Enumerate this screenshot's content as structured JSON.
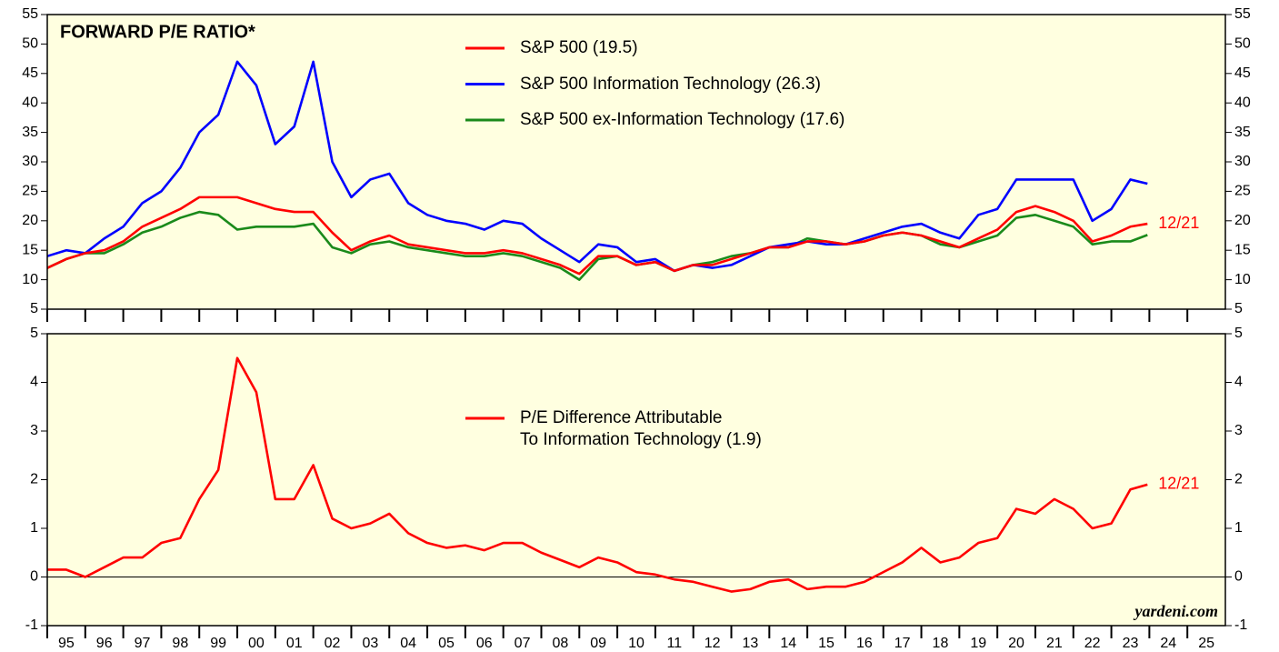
{
  "chart_data": [
    {
      "type": "line",
      "title": "FORWARD P/E RATIO*",
      "annotation": "12/21",
      "x": [
        1995.0,
        1995.5,
        1996.0,
        1996.5,
        1997.0,
        1997.5,
        1998.0,
        1998.5,
        1999.0,
        1999.5,
        2000.0,
        2000.5,
        2001.0,
        2001.5,
        2002.0,
        2002.5,
        2003.0,
        2003.5,
        2004.0,
        2004.5,
        2005.0,
        2005.5,
        2006.0,
        2006.5,
        2007.0,
        2007.5,
        2008.0,
        2008.5,
        2009.0,
        2009.5,
        2010.0,
        2010.5,
        2011.0,
        2011.5,
        2012.0,
        2012.5,
        2013.0,
        2013.5,
        2014.0,
        2014.5,
        2015.0,
        2015.5,
        2016.0,
        2016.5,
        2017.0,
        2017.5,
        2018.0,
        2018.5,
        2019.0,
        2019.5,
        2020.0,
        2020.5,
        2021.0,
        2021.5,
        2022.0,
        2022.5,
        2023.0,
        2023.5,
        2023.95
      ],
      "series": [
        {
          "name": "S&P 500 (19.5)",
          "color": "#ff0000",
          "values": [
            12,
            13.5,
            14.5,
            15,
            16.5,
            19,
            20.5,
            22,
            24,
            24,
            24,
            23,
            22,
            21.5,
            21.5,
            18,
            15,
            16.5,
            17.5,
            16,
            15.5,
            15,
            14.5,
            14.5,
            15,
            14.5,
            13.5,
            12.5,
            11,
            14,
            14,
            12.5,
            13,
            11.5,
            12.5,
            12.5,
            13.5,
            14.5,
            15.5,
            15.5,
            16.5,
            16.5,
            16,
            16.5,
            17.5,
            18,
            17.5,
            16.5,
            15.5,
            17,
            18.5,
            21.5,
            22.5,
            21.5,
            20,
            16.5,
            17.5,
            19,
            19.5
          ]
        },
        {
          "name": "S&P 500 Information Technology (26.3)",
          "color": "#0000ff",
          "values": [
            14,
            15,
            14.5,
            17,
            19,
            23,
            25,
            29,
            35,
            38,
            47,
            43,
            33,
            36,
            47,
            30,
            24,
            27,
            28,
            23,
            21,
            20,
            19.5,
            18.5,
            20,
            19.5,
            17,
            15,
            13,
            16,
            15.5,
            13,
            13.5,
            11.5,
            12.5,
            12,
            12.5,
            14,
            15.5,
            16,
            16.5,
            16,
            16,
            17,
            18,
            19,
            19.5,
            18,
            17,
            21,
            22,
            27,
            27,
            27,
            27,
            20,
            22,
            27,
            26.3
          ]
        },
        {
          "name": "S&P 500 ex-Information Technology (17.6)",
          "color": "#1a8a1a",
          "values": [
            12,
            13.5,
            14.5,
            14.5,
            16,
            18,
            19,
            20.5,
            21.5,
            21,
            18.5,
            19,
            19,
            19,
            19.5,
            15.5,
            14.5,
            16,
            16.5,
            15.5,
            15,
            14.5,
            14,
            14,
            14.5,
            14,
            13,
            12,
            10,
            13.5,
            14,
            12.5,
            13,
            11.5,
            12.5,
            13,
            14,
            14.5,
            15.5,
            15.5,
            17,
            16.5,
            16,
            16.5,
            17.5,
            18,
            17.5,
            16,
            15.5,
            16.5,
            17.5,
            20.5,
            21,
            20,
            19,
            16,
            16.5,
            16.5,
            17.6
          ]
        }
      ],
      "xlim": [
        1995,
        2026
      ],
      "xticks": [
        1995,
        1996,
        1997,
        1998,
        1999,
        2000,
        2001,
        2002,
        2003,
        2004,
        2005,
        2006,
        2007,
        2008,
        2009,
        2010,
        2011,
        2012,
        2013,
        2014,
        2015,
        2016,
        2017,
        2018,
        2019,
        2020,
        2021,
        2022,
        2023,
        2024,
        2025
      ],
      "ylim": [
        5,
        55
      ],
      "yticks": [
        5,
        10,
        15,
        20,
        25,
        30,
        35,
        40,
        45,
        50,
        55
      ]
    },
    {
      "type": "line",
      "annotation": "12/21",
      "source": "yardeni.com",
      "reference_line": 0,
      "x": [
        1995.0,
        1995.5,
        1996.0,
        1996.5,
        1997.0,
        1997.5,
        1998.0,
        1998.5,
        1999.0,
        1999.5,
        2000.0,
        2000.5,
        2001.0,
        2001.5,
        2002.0,
        2002.5,
        2003.0,
        2003.5,
        2004.0,
        2004.5,
        2005.0,
        2005.5,
        2006.0,
        2006.5,
        2007.0,
        2007.5,
        2008.0,
        2008.5,
        2009.0,
        2009.5,
        2010.0,
        2010.5,
        2011.0,
        2011.5,
        2012.0,
        2012.5,
        2013.0,
        2013.5,
        2014.0,
        2014.5,
        2015.0,
        2015.5,
        2016.0,
        2016.5,
        2017.0,
        2017.5,
        2018.0,
        2018.5,
        2019.0,
        2019.5,
        2020.0,
        2020.5,
        2021.0,
        2021.5,
        2022.0,
        2022.5,
        2023.0,
        2023.5,
        2023.95
      ],
      "series": [
        {
          "name": "P/E Difference Attributable\nTo Information Technology (1.9)",
          "color": "#ff0000",
          "values": [
            0.15,
            0.15,
            0,
            0.2,
            0.4,
            0.4,
            0.7,
            0.8,
            1.6,
            2.2,
            4.5,
            3.8,
            1.6,
            1.6,
            2.3,
            1.2,
            1,
            1.1,
            1.3,
            0.9,
            0.7,
            0.6,
            0.65,
            0.55,
            0.7,
            0.7,
            0.5,
            0.35,
            0.2,
            0.4,
            0.3,
            0.1,
            0.05,
            -0.05,
            -0.1,
            -0.2,
            -0.3,
            -0.25,
            -0.1,
            -0.05,
            -0.25,
            -0.2,
            -0.2,
            -0.1,
            0.1,
            0.3,
            0.6,
            0.3,
            0.4,
            0.7,
            0.8,
            1.4,
            1.3,
            1.6,
            1.4,
            1,
            1.1,
            1.8,
            1.9
          ]
        }
      ],
      "xlim": [
        1995,
        2026
      ],
      "xticks": [
        {
          "value": 1995,
          "label": "95"
        },
        {
          "value": 1996,
          "label": "96"
        },
        {
          "value": 1997,
          "label": "97"
        },
        {
          "value": 1998,
          "label": "98"
        },
        {
          "value": 1999,
          "label": "99"
        },
        {
          "value": 2000,
          "label": "00"
        },
        {
          "value": 2001,
          "label": "01"
        },
        {
          "value": 2002,
          "label": "02"
        },
        {
          "value": 2003,
          "label": "03"
        },
        {
          "value": 2004,
          "label": "04"
        },
        {
          "value": 2005,
          "label": "05"
        },
        {
          "value": 2006,
          "label": "06"
        },
        {
          "value": 2007,
          "label": "07"
        },
        {
          "value": 2008,
          "label": "08"
        },
        {
          "value": 2009,
          "label": "09"
        },
        {
          "value": 2010,
          "label": "10"
        },
        {
          "value": 2011,
          "label": "11"
        },
        {
          "value": 2012,
          "label": "12"
        },
        {
          "value": 2013,
          "label": "13"
        },
        {
          "value": 2014,
          "label": "14"
        },
        {
          "value": 2015,
          "label": "15"
        },
        {
          "value": 2016,
          "label": "16"
        },
        {
          "value": 2017,
          "label": "17"
        },
        {
          "value": 2018,
          "label": "18"
        },
        {
          "value": 2019,
          "label": "19"
        },
        {
          "value": 2020,
          "label": "20"
        },
        {
          "value": 2021,
          "label": "21"
        },
        {
          "value": 2022,
          "label": "22"
        },
        {
          "value": 2023,
          "label": "23"
        },
        {
          "value": 2024,
          "label": "24"
        },
        {
          "value": 2025,
          "label": "25"
        }
      ],
      "ylim": [
        -1,
        5
      ],
      "yticks": [
        -1,
        0,
        1,
        2,
        3,
        4,
        5
      ]
    }
  ]
}
